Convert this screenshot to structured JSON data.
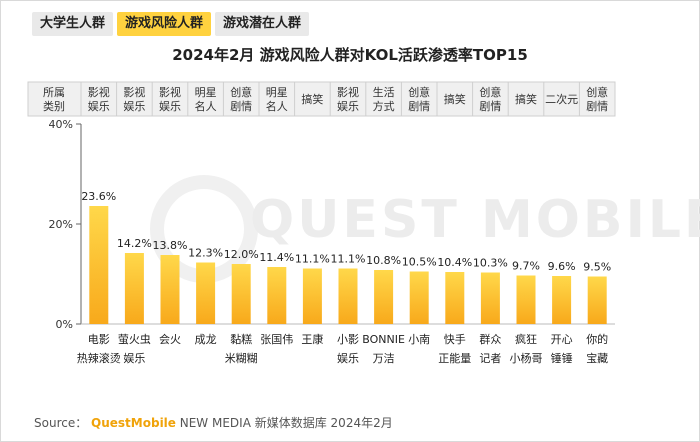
{
  "tabs": [
    {
      "label": "大学生人群",
      "active": false
    },
    {
      "label": "游戏风险人群",
      "active": true
    },
    {
      "label": "游戏潜在人群",
      "active": false
    }
  ],
  "title": "2024年2月 游戏风险人群对KOL活跃渗透率TOP15",
  "watermark": "QUEST MOBILE",
  "colors": {
    "bar_top": "#ffd84a",
    "bar_bottom": "#f8a91b",
    "tab_active": "#ffd23f",
    "category_bg": "#f0f0f0"
  },
  "chart_data": {
    "type": "bar",
    "ylim": [
      0,
      40
    ],
    "yticks": [
      "0%",
      "20%",
      "40%"
    ],
    "grid": false,
    "category_header": "所属类别",
    "categories": [
      "影视娱乐",
      "影视娱乐",
      "影视娱乐",
      "明星名人",
      "创意剧情",
      "明星名人",
      "搞笑",
      "影视娱乐",
      "生活方式",
      "创意剧情",
      "搞笑",
      "创意剧情",
      "搞笑",
      "二次元",
      "创意剧情"
    ],
    "names": [
      "电影热辣滚烫",
      "萤火虫娱乐",
      "会火",
      "成龙",
      "黏糕米糊糊",
      "张国伟",
      "王康",
      "小影娱乐",
      "BONNIE万洁",
      "小南",
      "快手正能量",
      "群众记者",
      "疯狂小杨哥",
      "开心锤锤",
      "你的宝藏"
    ],
    "values": [
      23.6,
      14.2,
      13.8,
      12.3,
      12.0,
      11.4,
      11.1,
      11.1,
      10.8,
      10.5,
      10.4,
      10.3,
      9.7,
      9.6,
      9.5
    ],
    "labels": [
      "23.6%",
      "14.2%",
      "13.8%",
      "12.3%",
      "12.0%",
      "11.4%",
      "11.1%",
      "11.1%",
      "10.8%",
      "10.5%",
      "10.4%",
      "10.3%",
      "9.7%",
      "9.6%",
      "9.5%"
    ]
  },
  "source": {
    "prefix": "Source： ",
    "brand": "QuestMobile",
    "rest": " NEW MEDIA 新媒体数据库 2024年2月"
  }
}
